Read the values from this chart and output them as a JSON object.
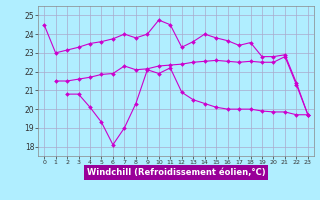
{
  "xlabel": "Windchill (Refroidissement éolien,°C)",
  "x": [
    0,
    1,
    2,
    3,
    4,
    5,
    6,
    7,
    8,
    9,
    10,
    11,
    12,
    13,
    14,
    15,
    16,
    17,
    18,
    19,
    20,
    21,
    22,
    23
  ],
  "series": [
    [
      24.5,
      23.0,
      23.15,
      23.3,
      23.5,
      23.6,
      23.75,
      24.0,
      23.8,
      24.0,
      24.75,
      24.5,
      23.3,
      23.6,
      24.0,
      23.8,
      23.65,
      23.4,
      23.55,
      22.8,
      22.8,
      22.9,
      21.4,
      19.7
    ],
    [
      null,
      21.5,
      21.5,
      21.6,
      21.7,
      21.85,
      21.9,
      22.3,
      22.1,
      22.15,
      22.3,
      22.35,
      22.4,
      22.5,
      22.55,
      22.6,
      22.55,
      22.5,
      22.55,
      22.5,
      22.5,
      22.8,
      21.3,
      19.7
    ],
    [
      null,
      null,
      20.8,
      20.8,
      20.1,
      19.3,
      18.1,
      19.0,
      20.3,
      22.1,
      21.9,
      22.2,
      20.9,
      20.5,
      20.3,
      20.1,
      20.0,
      20.0,
      20.0,
      19.9,
      19.85,
      19.85,
      19.7,
      19.7
    ]
  ],
  "bg_color": "#b0eeff",
  "grid_color": "#aaaacc",
  "line_color": "#cc00cc",
  "ylim": [
    17.5,
    25.5
  ],
  "yticks": [
    18,
    19,
    20,
    21,
    22,
    23,
    24,
    25
  ],
  "xlim": [
    -0.5,
    23.5
  ],
  "xticks": [
    0,
    1,
    2,
    3,
    4,
    5,
    6,
    7,
    8,
    9,
    10,
    11,
    12,
    13,
    14,
    15,
    16,
    17,
    18,
    19,
    20,
    21,
    22,
    23
  ],
  "xlabel_bg": "#990099",
  "xlabel_color": "white",
  "xlabel_fontsize": 6.0,
  "tick_fontsize": 5.5,
  "lw": 0.8,
  "ms": 2.0
}
